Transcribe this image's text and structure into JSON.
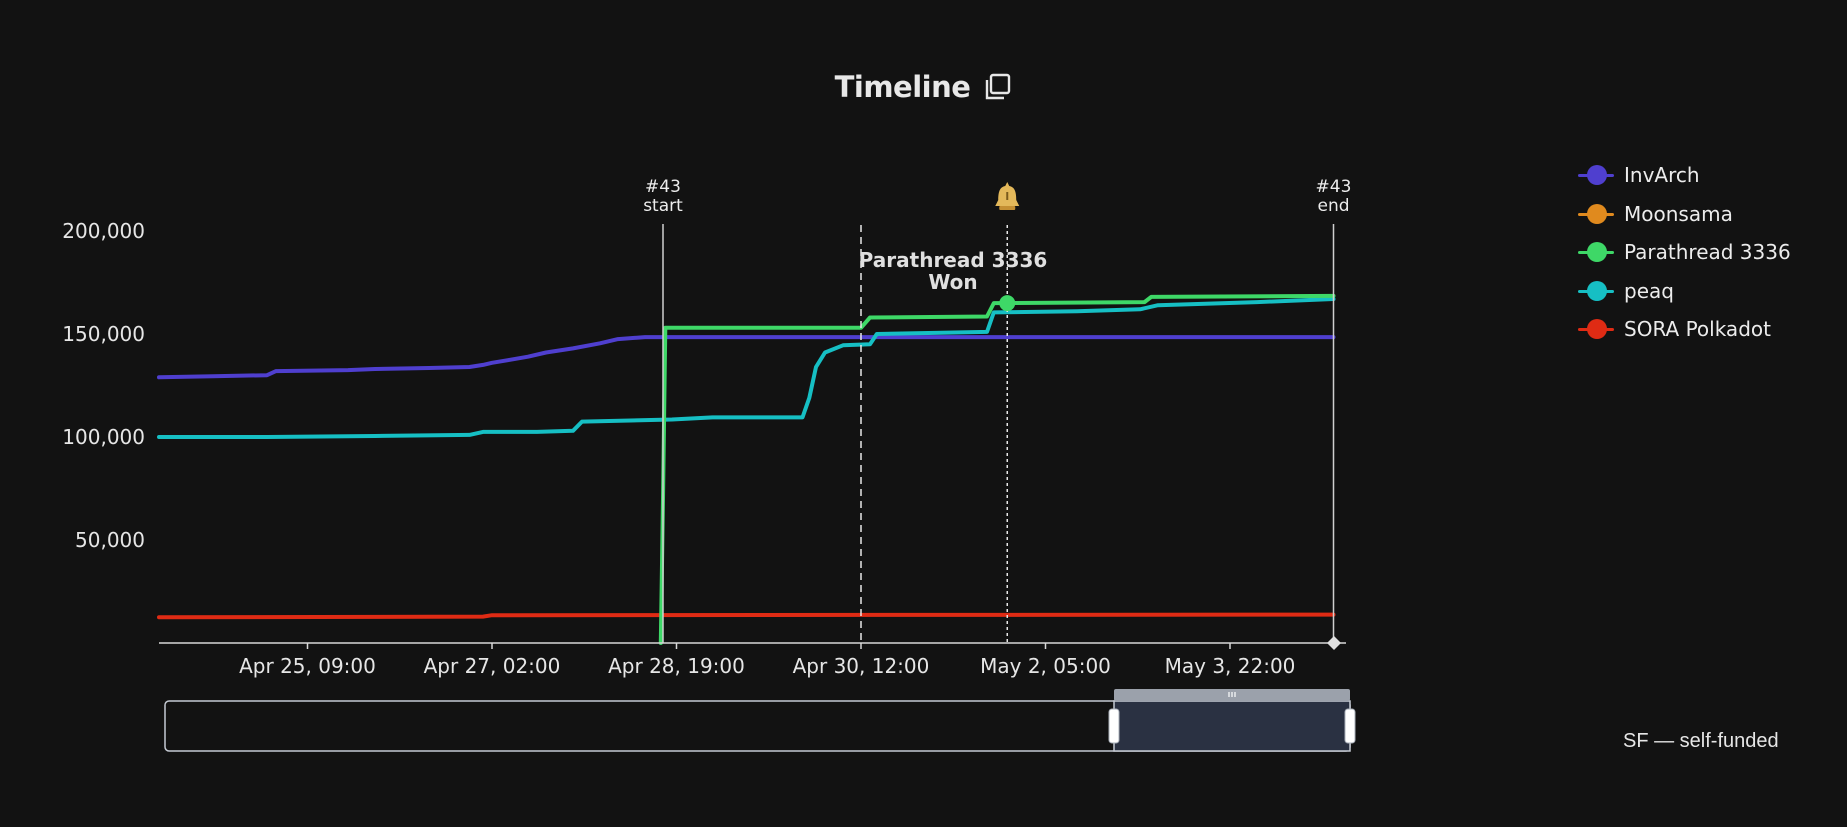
{
  "header": {
    "title": "Timeline",
    "copy_icon": "copy-icon"
  },
  "footnote": "SF — self-funded",
  "colors": {
    "background": "#121212",
    "axis": "#d8d8d8",
    "text": "#e6e6e6",
    "slider_border": "#c5cad3",
    "slider_window": "#2a3142"
  },
  "chart_data": {
    "type": "line",
    "title": "Timeline",
    "xlabel": "",
    "ylabel": "",
    "x_ticks": [
      "Apr 25, 09:00",
      "Apr 27, 02:00",
      "Apr 28, 19:00",
      "Apr 30, 12:00",
      "May 2, 05:00",
      "May 3, 22:00"
    ],
    "y_ticks": [
      "50,000",
      "100,000",
      "150,000",
      "200,000"
    ],
    "xlim": [
      "2024-04-24T00:00",
      "2024-05-04T22:00"
    ],
    "ylim": [
      0,
      200000
    ],
    "grid": false,
    "legend_position": "right",
    "series": [
      {
        "name": "InvArch",
        "color": "#4f3fcf",
        "points": [
          [
            "2024-04-24T00:00",
            129000
          ],
          [
            "2024-04-24T12:00",
            129500
          ],
          [
            "2024-04-25T00:00",
            130000
          ],
          [
            "2024-04-25T02:00",
            132000
          ],
          [
            "2024-04-25T18:00",
            132500
          ],
          [
            "2024-04-26T00:00",
            133000
          ],
          [
            "2024-04-26T12:00",
            133500
          ],
          [
            "2024-04-26T21:00",
            134000
          ],
          [
            "2024-04-27T00:00",
            135000
          ],
          [
            "2024-04-27T02:00",
            136000
          ],
          [
            "2024-04-27T06:00",
            137500
          ],
          [
            "2024-04-27T10:00",
            139000
          ],
          [
            "2024-04-27T14:00",
            141000
          ],
          [
            "2024-04-27T20:00",
            143000
          ],
          [
            "2024-04-28T02:00",
            145500
          ],
          [
            "2024-04-28T06:00",
            147500
          ],
          [
            "2024-04-28T12:00",
            148500
          ],
          [
            "2024-05-04T21:00",
            148500
          ]
        ]
      },
      {
        "name": "Moonsama",
        "color": "#e08a1e",
        "points": []
      },
      {
        "name": "Parathread 3336",
        "color": "#3ed867",
        "points": [
          [
            "2024-04-28T15:30",
            0
          ],
          [
            "2024-04-28T16:00",
            70000
          ],
          [
            "2024-04-28T16:30",
            153000
          ],
          [
            "2024-04-30T12:00",
            153000
          ],
          [
            "2024-04-30T14:00",
            158000
          ],
          [
            "2024-05-01T16:00",
            158500
          ],
          [
            "2024-05-01T17:30",
            165000
          ],
          [
            "2024-05-03T03:00",
            165500
          ],
          [
            "2024-05-03T04:30",
            168000
          ],
          [
            "2024-05-04T21:00",
            168500
          ]
        ]
      },
      {
        "name": "peaq",
        "color": "#16bfc4",
        "points": [
          [
            "2024-04-24T00:00",
            100000
          ],
          [
            "2024-04-25T00:00",
            100000
          ],
          [
            "2024-04-26T00:00",
            100500
          ],
          [
            "2024-04-26T21:00",
            101000
          ],
          [
            "2024-04-27T00:00",
            102500
          ],
          [
            "2024-04-27T12:00",
            102500
          ],
          [
            "2024-04-27T20:00",
            103000
          ],
          [
            "2024-04-27T22:00",
            107500
          ],
          [
            "2024-04-28T18:00",
            108500
          ],
          [
            "2024-04-29T03:00",
            109500
          ],
          [
            "2024-04-29T23:00",
            109500
          ],
          [
            "2024-04-30T00:30",
            119000
          ],
          [
            "2024-04-30T02:00",
            134000
          ],
          [
            "2024-04-30T04:00",
            141000
          ],
          [
            "2024-04-30T08:00",
            144500
          ],
          [
            "2024-04-30T14:00",
            145000
          ],
          [
            "2024-04-30T15:30",
            150000
          ],
          [
            "2024-05-01T16:00",
            151000
          ],
          [
            "2024-05-01T17:30",
            160500
          ],
          [
            "2024-05-02T12:00",
            161000
          ],
          [
            "2024-05-03T02:00",
            162000
          ],
          [
            "2024-05-03T06:00",
            164000
          ],
          [
            "2024-05-04T04:00",
            165500
          ],
          [
            "2024-05-04T21:00",
            167000
          ]
        ]
      },
      {
        "name": "SORA Polkadot",
        "color": "#df2b14",
        "points": [
          [
            "2024-04-24T00:00",
            12500
          ],
          [
            "2024-04-27T00:00",
            12800
          ],
          [
            "2024-04-27T02:00",
            13500
          ],
          [
            "2024-05-04T21:00",
            13800
          ]
        ]
      }
    ],
    "annotations": [
      {
        "kind": "solid",
        "x": "2024-04-28T16:00",
        "label": [
          "#43",
          "start"
        ]
      },
      {
        "kind": "dashed",
        "x": "2024-04-30T12:00",
        "label": [
          "Parathread 3336",
          "Won"
        ]
      },
      {
        "kind": "dotted",
        "x": "2024-05-01T20:30",
        "icon": "bell-icon",
        "marker_series": "Parathread 3336",
        "marker_value": 165000
      },
      {
        "kind": "solid",
        "x": "2024-05-04T21:00",
        "label": [
          "#43",
          "end"
        ]
      }
    ],
    "zoom_window": [
      0.8,
      1.0
    ]
  }
}
